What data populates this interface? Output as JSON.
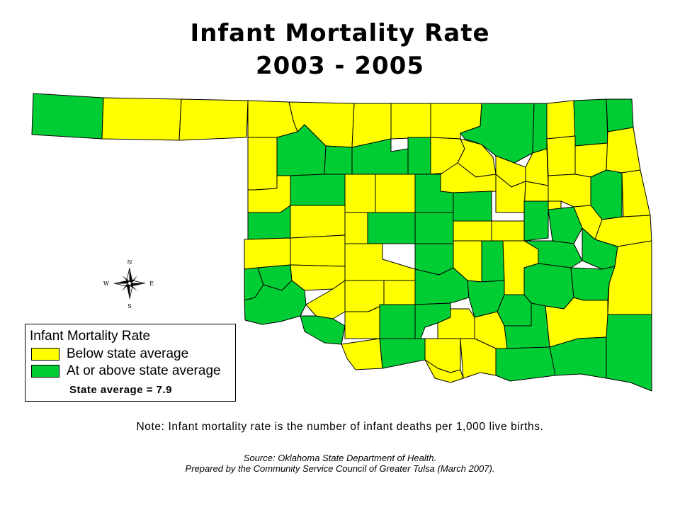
{
  "title": {
    "line1": "Infant Mortality Rate",
    "line2": "2003 - 2005"
  },
  "colors": {
    "below": "#ffff00",
    "above": "#00cc33",
    "border": "#000000"
  },
  "compass": {
    "n": "N",
    "s": "S",
    "e": "E",
    "w": "W"
  },
  "legend": {
    "title": "Infant Mortality Rate",
    "items": [
      {
        "label": "Below state average",
        "category": "below"
      },
      {
        "label": "At or above state average",
        "category": "above"
      }
    ],
    "state_average_label": "State average = 7.9"
  },
  "note": "Note:  Infant mortality rate is the number of infant deaths per 1,000 live births.",
  "source": {
    "line1": "Source:  Oklahoma State Department of Health.",
    "line2": "Prepared by the Community Service Council of Greater Tulsa (March 2007)."
  }
}
